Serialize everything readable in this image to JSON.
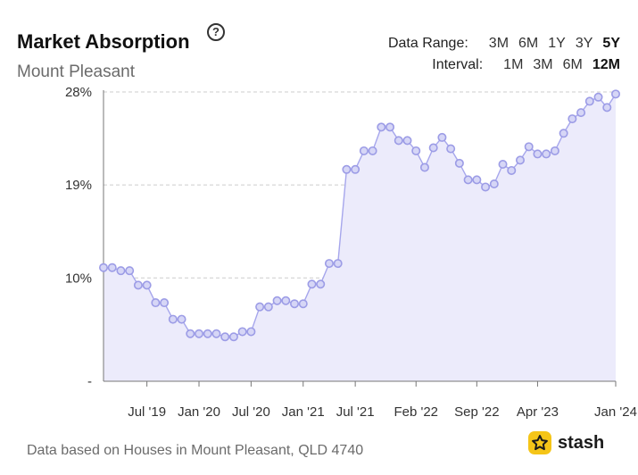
{
  "header": {
    "title": "Market Absorption",
    "subtitle": "Mount Pleasant",
    "help_icon": "help-circle-icon"
  },
  "controls": {
    "data_range_label": "Data Range:",
    "data_range_options": [
      "3M",
      "6M",
      "1Y",
      "3Y",
      "5Y"
    ],
    "data_range_selected": "5Y",
    "interval_label": "Interval:",
    "interval_options": [
      "1M",
      "3M",
      "6M",
      "12M"
    ],
    "interval_selected": "12M"
  },
  "footer": {
    "note": "Data based on Houses in Mount Pleasant, QLD 4740",
    "brand": "stash",
    "brand_icon": "star-icon"
  },
  "colors": {
    "line": "#a6a6ec",
    "fill": "#ecebfb",
    "marker_fill": "#d6d6f6",
    "marker_stroke": "#9c9ce6",
    "grid": "#cccccc",
    "logo_badge": "#f5c518"
  },
  "chart_data": {
    "type": "area",
    "title": "Market Absorption",
    "xlabel": "",
    "ylabel": "",
    "grid": true,
    "ylim": [
      0,
      28
    ],
    "y_ticks": [
      {
        "value": 0,
        "label": "-"
      },
      {
        "value": 10,
        "label": "10%"
      },
      {
        "value": 19,
        "label": "19%"
      },
      {
        "value": 28,
        "label": "28%"
      }
    ],
    "x_ticks": [
      {
        "index": 5,
        "label": "Jul '19"
      },
      {
        "index": 11,
        "label": "Jan '20"
      },
      {
        "index": 17,
        "label": "Jul '20"
      },
      {
        "index": 23,
        "label": "Jan '21"
      },
      {
        "index": 29,
        "label": "Jul '21"
      },
      {
        "index": 36,
        "label": "Feb '22"
      },
      {
        "index": 43,
        "label": "Sep '22"
      },
      {
        "index": 50,
        "label": "Apr '23"
      },
      {
        "index": 59,
        "label": "Jan '24"
      }
    ],
    "series": [
      {
        "values": [
          11.0,
          11.0,
          10.7,
          10.7,
          9.3,
          9.3,
          7.6,
          7.6,
          6.0,
          6.0,
          4.6,
          4.6,
          4.6,
          4.6,
          4.3,
          4.3,
          4.8,
          4.8,
          7.2,
          7.2,
          7.8,
          7.8,
          7.5,
          7.5,
          9.4,
          9.4,
          11.4,
          11.4,
          20.5,
          20.5,
          22.3,
          22.3,
          24.6,
          24.6,
          23.3,
          23.3,
          22.3,
          20.7,
          22.6,
          23.6,
          22.5,
          21.1,
          19.5,
          19.5,
          18.8,
          19.1,
          21.0,
          20.4,
          21.4,
          22.7,
          22.0,
          22.0,
          22.3,
          24.0,
          25.4,
          26.0,
          27.1,
          27.5,
          26.5,
          27.8
        ]
      }
    ]
  }
}
